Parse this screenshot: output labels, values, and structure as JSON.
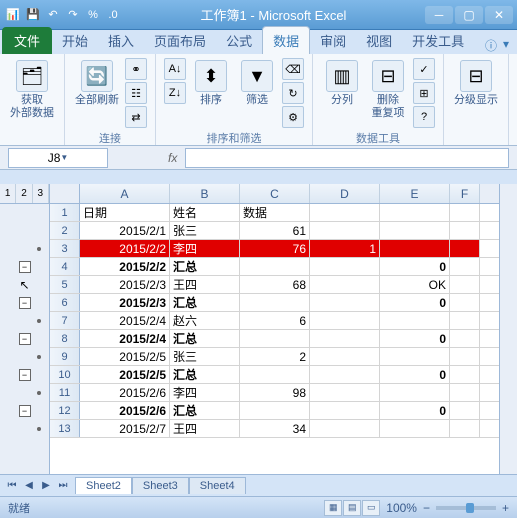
{
  "title": "工作簿1 - Microsoft Excel",
  "tabs": {
    "file": "文件",
    "home": "开始",
    "insert": "插入",
    "layout": "页面布局",
    "formula": "公式",
    "data": "数据",
    "review": "审阅",
    "view": "视图",
    "dev": "开发工具"
  },
  "ribbon": {
    "g1": {
      "btn": "获取\n外部数据",
      "label": ""
    },
    "g2": {
      "btn": "全部刷新",
      "label": "连接"
    },
    "g3": {
      "btn": "排序",
      "label": "排序和筛选",
      "filter": "筛选"
    },
    "g4": {
      "col": "分列",
      "dup": "删除\n重复项",
      "label": "数据工具"
    },
    "g5": {
      "btn": "分级显示"
    }
  },
  "namebox": "J8",
  "fx": "fx",
  "cols": {
    "A": 90,
    "B": 70,
    "C": 70,
    "D": 70,
    "E": 70,
    "F": 30
  },
  "headers": {
    "A": "日期",
    "B": "姓名",
    "C": "数据"
  },
  "rows": [
    {
      "n": 1,
      "A": "日期",
      "B": "姓名",
      "C": "数据",
      "hdr": true
    },
    {
      "n": 2,
      "A": "2015/2/1",
      "B": "张三",
      "C": "61"
    },
    {
      "n": 3,
      "A": "2015/2/2",
      "B": "李四",
      "C": "76",
      "D": "1",
      "red": true
    },
    {
      "n": 4,
      "A": "2015/2/2",
      "B": "汇总",
      "E": "0",
      "bold": true
    },
    {
      "n": 5,
      "A": "2015/2/3",
      "B": "王四",
      "C": "68",
      "E": "OK"
    },
    {
      "n": 6,
      "A": "2015/2/3",
      "B": "汇总",
      "E": "0",
      "bold": true
    },
    {
      "n": 7,
      "A": "2015/2/4",
      "B": "赵六",
      "C": "6"
    },
    {
      "n": 8,
      "A": "2015/2/4",
      "B": "汇总",
      "E": "0",
      "bold": true
    },
    {
      "n": 9,
      "A": "2015/2/5",
      "B": "张三",
      "C": "2"
    },
    {
      "n": 10,
      "A": "2015/2/5",
      "B": "汇总",
      "E": "0",
      "bold": true
    },
    {
      "n": 11,
      "A": "2015/2/6",
      "B": "李四",
      "C": "98"
    },
    {
      "n": 12,
      "A": "2015/2/6",
      "B": "汇总",
      "E": "0",
      "bold": true
    },
    {
      "n": 13,
      "A": "2015/2/7",
      "B": "王四",
      "C": "34"
    }
  ],
  "outline": [
    "",
    "",
    "dot",
    "minus",
    "cursor",
    "minus",
    "dot",
    "minus",
    "dot",
    "minus",
    "dot",
    "minus",
    "dot"
  ],
  "sheets": [
    "Sheet2",
    "Sheet3",
    "Sheet4"
  ],
  "status": "就绪",
  "zoom": "100%"
}
